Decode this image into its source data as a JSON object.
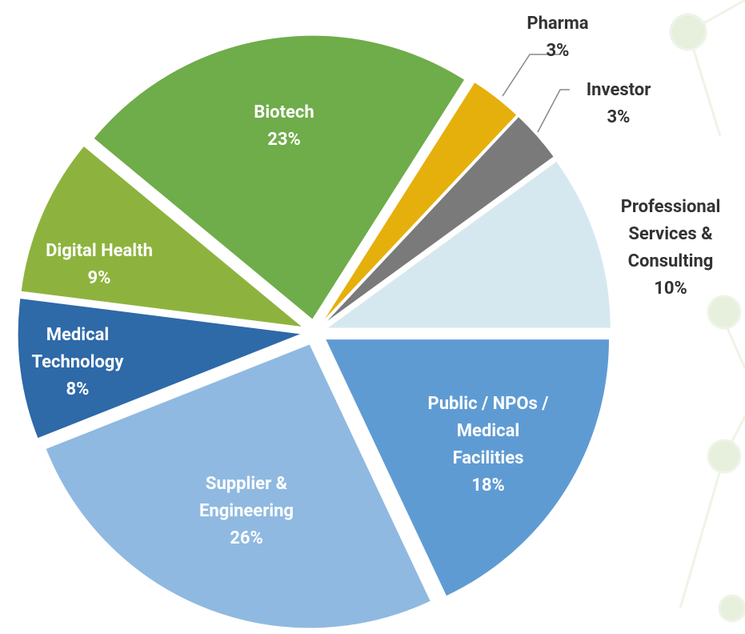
{
  "chart_data": {
    "type": "pie",
    "categories": [
      "Pharma",
      "Investor",
      "Professional Services & Consulting",
      "Public / NPOs / Medical Facilities",
      "Supplier & Engineering",
      "Medical Technology",
      "Digital Health",
      "Biotech"
    ],
    "values": [
      3,
      3,
      10,
      18,
      26,
      8,
      9,
      23
    ],
    "value_labels": [
      "3%",
      "3%",
      "10%",
      "18%",
      "26%",
      "8%",
      "9%",
      "23%"
    ],
    "colors": [
      "#e5b00b",
      "#7a7a7a",
      "#d6e8ef",
      "#5f9bd3",
      "#8fb9e0",
      "#2e69a8",
      "#8db33e",
      "#6fac4a"
    ]
  }
}
